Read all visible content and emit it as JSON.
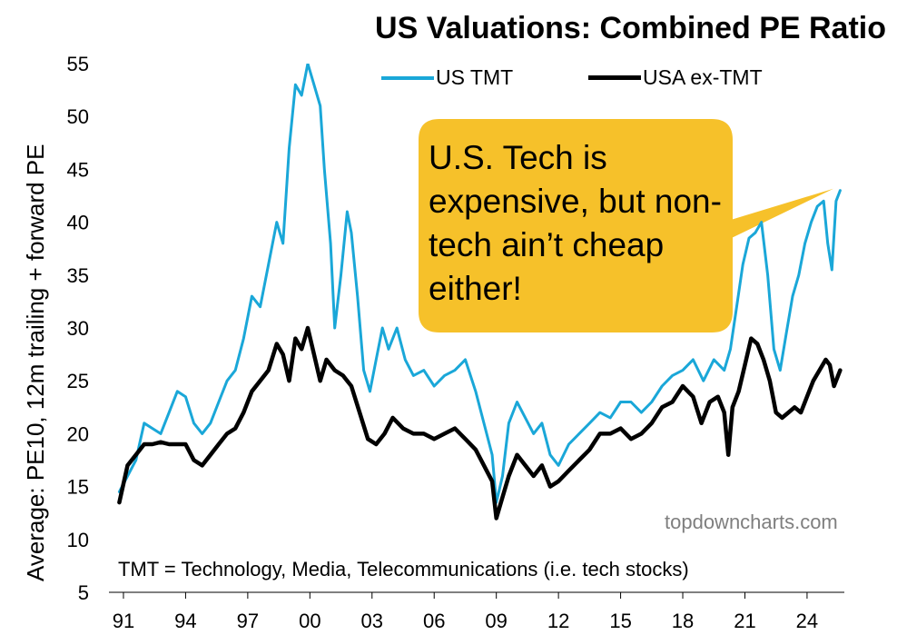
{
  "title": "US Valuations: Combined PE Ratio",
  "callout": "U.S. Tech is expensive, but non-tech ain’t cheap either!",
  "footnote": "TMT = Technology, Media, Telecommunications  (i.e. tech stocks)",
  "watermark": "topdowncharts.com",
  "chart_data": {
    "type": "line",
    "title": "US Valuations: Combined PE Ratio",
    "xlabel": "",
    "ylabel": "Average: PE10, 12m trailing + forward PE",
    "ylim": [
      5,
      55
    ],
    "xlim": [
      1990.3,
      2025.8
    ],
    "yticks": [
      5,
      10,
      15,
      20,
      25,
      30,
      35,
      40,
      45,
      50,
      55
    ],
    "xticks": [
      1991,
      1994,
      1997,
      2000,
      2003,
      2006,
      2009,
      2012,
      2015,
      2018,
      2021,
      2024
    ],
    "xtick_labels": [
      "91",
      "94",
      "97",
      "00",
      "03",
      "06",
      "09",
      "12",
      "15",
      "18",
      "21",
      "24"
    ],
    "grid": false,
    "legend": "top",
    "series": [
      {
        "name": "US TMT",
        "color": "#1aa7d8",
        "x": [
          1990.8,
          1991.2,
          1991.6,
          1992.0,
          1992.4,
          1992.8,
          1993.2,
          1993.6,
          1994.0,
          1994.4,
          1994.8,
          1995.2,
          1995.6,
          1996.0,
          1996.4,
          1996.8,
          1997.2,
          1997.6,
          1998.0,
          1998.4,
          1998.7,
          1999.0,
          1999.3,
          1999.6,
          1999.9,
          2000.2,
          2000.5,
          2000.7,
          2001.0,
          2001.2,
          2001.5,
          2001.8,
          2002.0,
          2002.3,
          2002.6,
          2002.9,
          2003.2,
          2003.5,
          2003.8,
          2004.2,
          2004.6,
          2005.0,
          2005.5,
          2006.0,
          2006.5,
          2007.0,
          2007.5,
          2008.0,
          2008.4,
          2008.8,
          2009.0,
          2009.3,
          2009.6,
          2010.0,
          2010.4,
          2010.8,
          2011.2,
          2011.6,
          2012.0,
          2012.5,
          2013.0,
          2013.5,
          2014.0,
          2014.5,
          2015.0,
          2015.5,
          2016.0,
          2016.5,
          2017.0,
          2017.5,
          2018.0,
          2018.5,
          2019.0,
          2019.5,
          2020.0,
          2020.3,
          2020.6,
          2020.9,
          2021.2,
          2021.5,
          2021.8,
          2022.1,
          2022.4,
          2022.7,
          2023.0,
          2023.3,
          2023.6,
          2023.9,
          2024.2,
          2024.5,
          2024.8,
          2025.0,
          2025.2,
          2025.4,
          2025.6
        ],
        "values": [
          14.5,
          16.0,
          17.5,
          21.0,
          20.5,
          20.0,
          22.0,
          24.0,
          23.5,
          21.0,
          20.0,
          21.0,
          23.0,
          25.0,
          26.0,
          29.0,
          33.0,
          32.0,
          36.0,
          40.0,
          38.0,
          47.0,
          53.0,
          52.0,
          55.0,
          53.0,
          51.0,
          45.0,
          38.0,
          30.0,
          35.0,
          41.0,
          39.0,
          33.0,
          26.0,
          24.0,
          27.0,
          30.0,
          28.0,
          30.0,
          27.0,
          25.5,
          26.0,
          24.5,
          25.5,
          26.0,
          27.0,
          24.0,
          21.0,
          18.0,
          13.5,
          16.0,
          21.0,
          23.0,
          21.5,
          20.0,
          21.0,
          18.0,
          17.0,
          19.0,
          20.0,
          21.0,
          22.0,
          21.5,
          23.0,
          23.0,
          22.0,
          23.0,
          24.5,
          25.5,
          26.0,
          27.0,
          25.0,
          27.0,
          26.0,
          28.0,
          32.0,
          36.0,
          38.5,
          39.0,
          40.0,
          35.0,
          28.0,
          26.0,
          29.5,
          33.0,
          35.0,
          38.0,
          40.0,
          41.5,
          42.0,
          38.0,
          35.5,
          42.0,
          43.0
        ]
      },
      {
        "name": "USA ex-TMT",
        "color": "#000000",
        "x": [
          1990.8,
          1991.2,
          1991.6,
          1992.0,
          1992.4,
          1992.8,
          1993.2,
          1993.6,
          1994.0,
          1994.4,
          1994.8,
          1995.2,
          1995.6,
          1996.0,
          1996.4,
          1996.8,
          1997.2,
          1997.6,
          1998.0,
          1998.4,
          1998.7,
          1999.0,
          1999.3,
          1999.6,
          1999.9,
          2000.2,
          2000.5,
          2000.8,
          2001.2,
          2001.6,
          2002.0,
          2002.4,
          2002.8,
          2003.2,
          2003.6,
          2004.0,
          2004.5,
          2005.0,
          2005.5,
          2006.0,
          2006.5,
          2007.0,
          2007.5,
          2008.0,
          2008.4,
          2008.8,
          2009.0,
          2009.3,
          2009.6,
          2010.0,
          2010.4,
          2010.8,
          2011.2,
          2011.6,
          2012.0,
          2012.5,
          2013.0,
          2013.5,
          2014.0,
          2014.5,
          2015.0,
          2015.5,
          2016.0,
          2016.5,
          2017.0,
          2017.5,
          2018.0,
          2018.5,
          2018.9,
          2019.3,
          2019.7,
          2020.0,
          2020.2,
          2020.4,
          2020.7,
          2021.0,
          2021.3,
          2021.6,
          2021.9,
          2022.2,
          2022.5,
          2022.8,
          2023.1,
          2023.4,
          2023.7,
          2024.0,
          2024.3,
          2024.6,
          2024.9,
          2025.1,
          2025.3,
          2025.6
        ],
        "values": [
          13.5,
          17.0,
          18.0,
          19.0,
          19.0,
          19.2,
          19.0,
          19.0,
          19.0,
          17.5,
          17.0,
          18.0,
          19.0,
          20.0,
          20.5,
          22.0,
          24.0,
          25.0,
          26.0,
          28.5,
          27.5,
          25.0,
          29.0,
          28.0,
          30.0,
          27.5,
          25.0,
          27.0,
          26.0,
          25.5,
          24.5,
          22.0,
          19.5,
          19.0,
          20.0,
          21.5,
          20.5,
          20.0,
          20.0,
          19.5,
          20.0,
          20.5,
          19.5,
          18.5,
          17.0,
          15.5,
          12.0,
          14.0,
          16.0,
          18.0,
          17.0,
          16.0,
          17.0,
          15.0,
          15.5,
          16.5,
          17.5,
          18.5,
          20.0,
          20.0,
          20.5,
          19.5,
          20.0,
          21.0,
          22.5,
          23.0,
          24.5,
          23.5,
          21.0,
          23.0,
          23.5,
          22.0,
          18.0,
          22.5,
          24.0,
          26.5,
          29.0,
          28.5,
          27.0,
          25.0,
          22.0,
          21.5,
          22.0,
          22.5,
          22.0,
          23.5,
          25.0,
          26.0,
          27.0,
          26.5,
          24.5,
          26.0
        ]
      }
    ]
  }
}
